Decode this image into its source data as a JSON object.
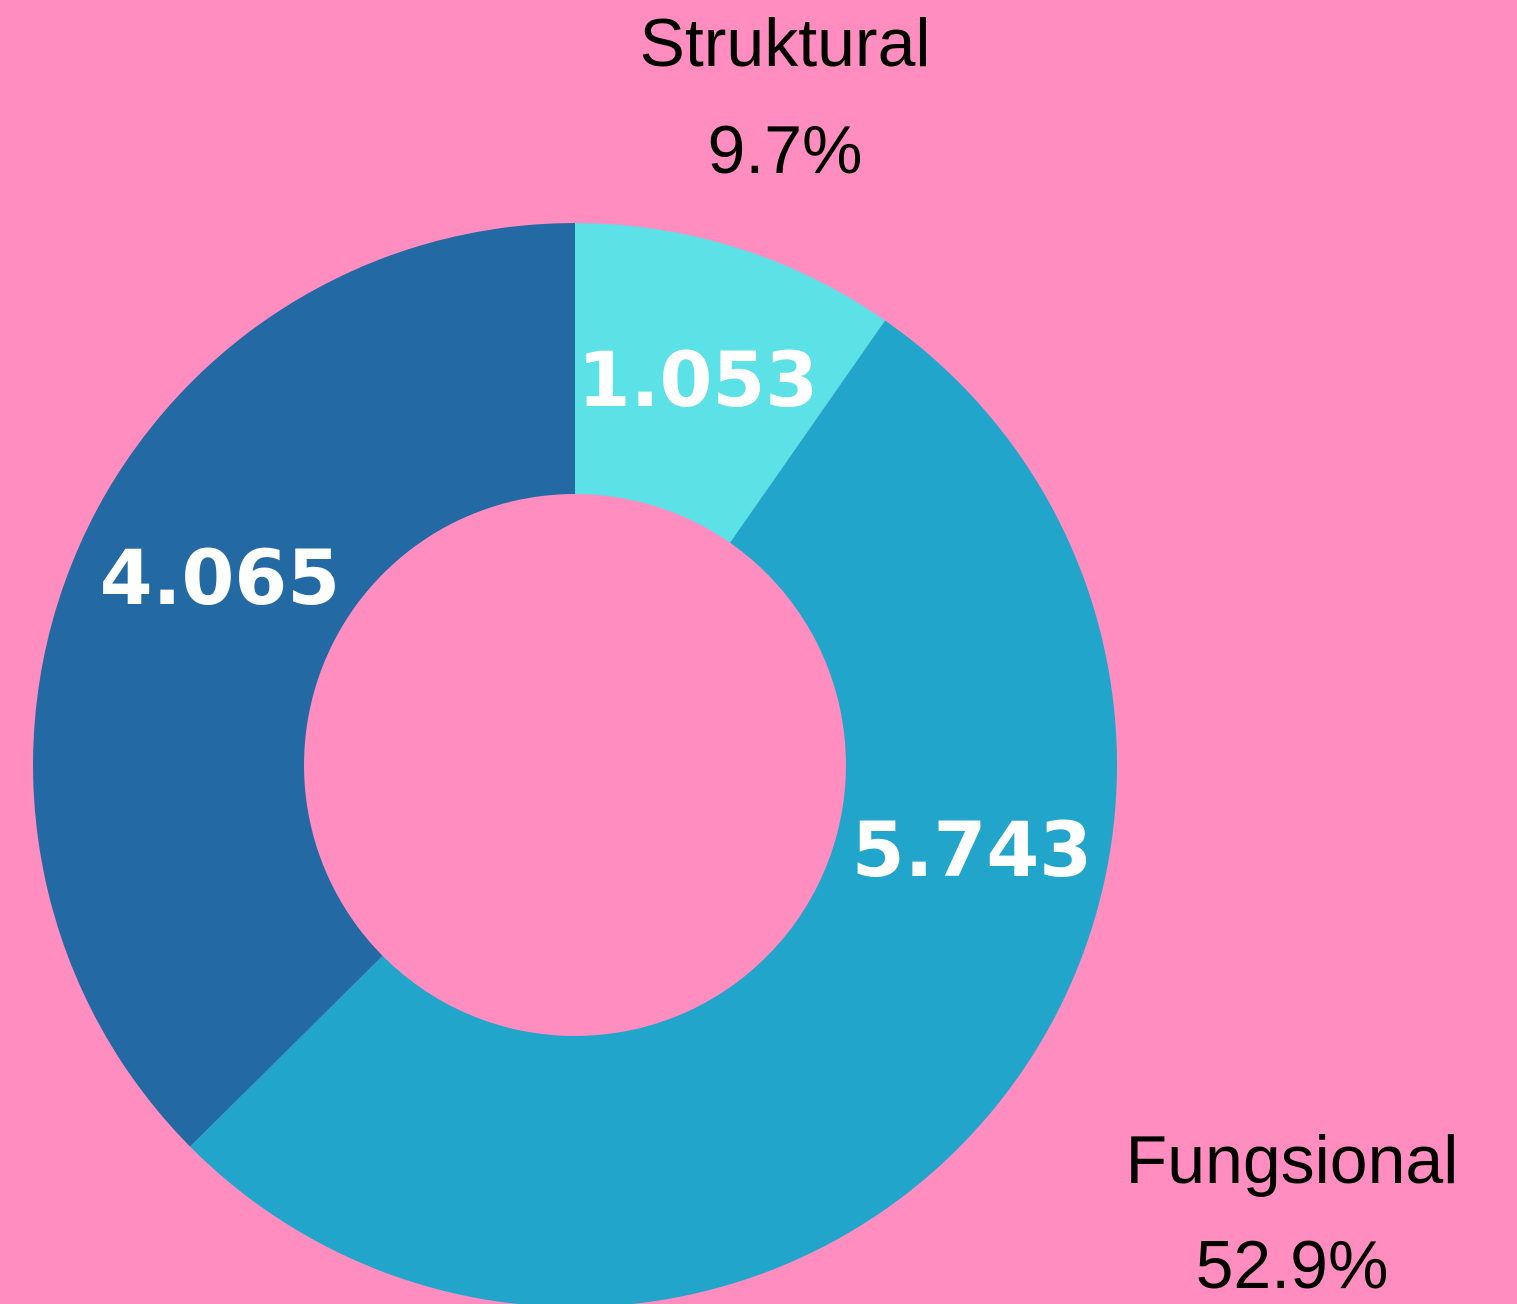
{
  "chart_data": {
    "type": "donut",
    "categories": [
      "Struktural",
      "Fungsional",
      null
    ],
    "values": [
      1.053,
      5.743,
      4.065
    ],
    "percent_labels": [
      "9.7%",
      "52.9%",
      null
    ],
    "colors": [
      "#5ce1e6",
      "#22a5cb",
      "#2369a3"
    ]
  }
}
